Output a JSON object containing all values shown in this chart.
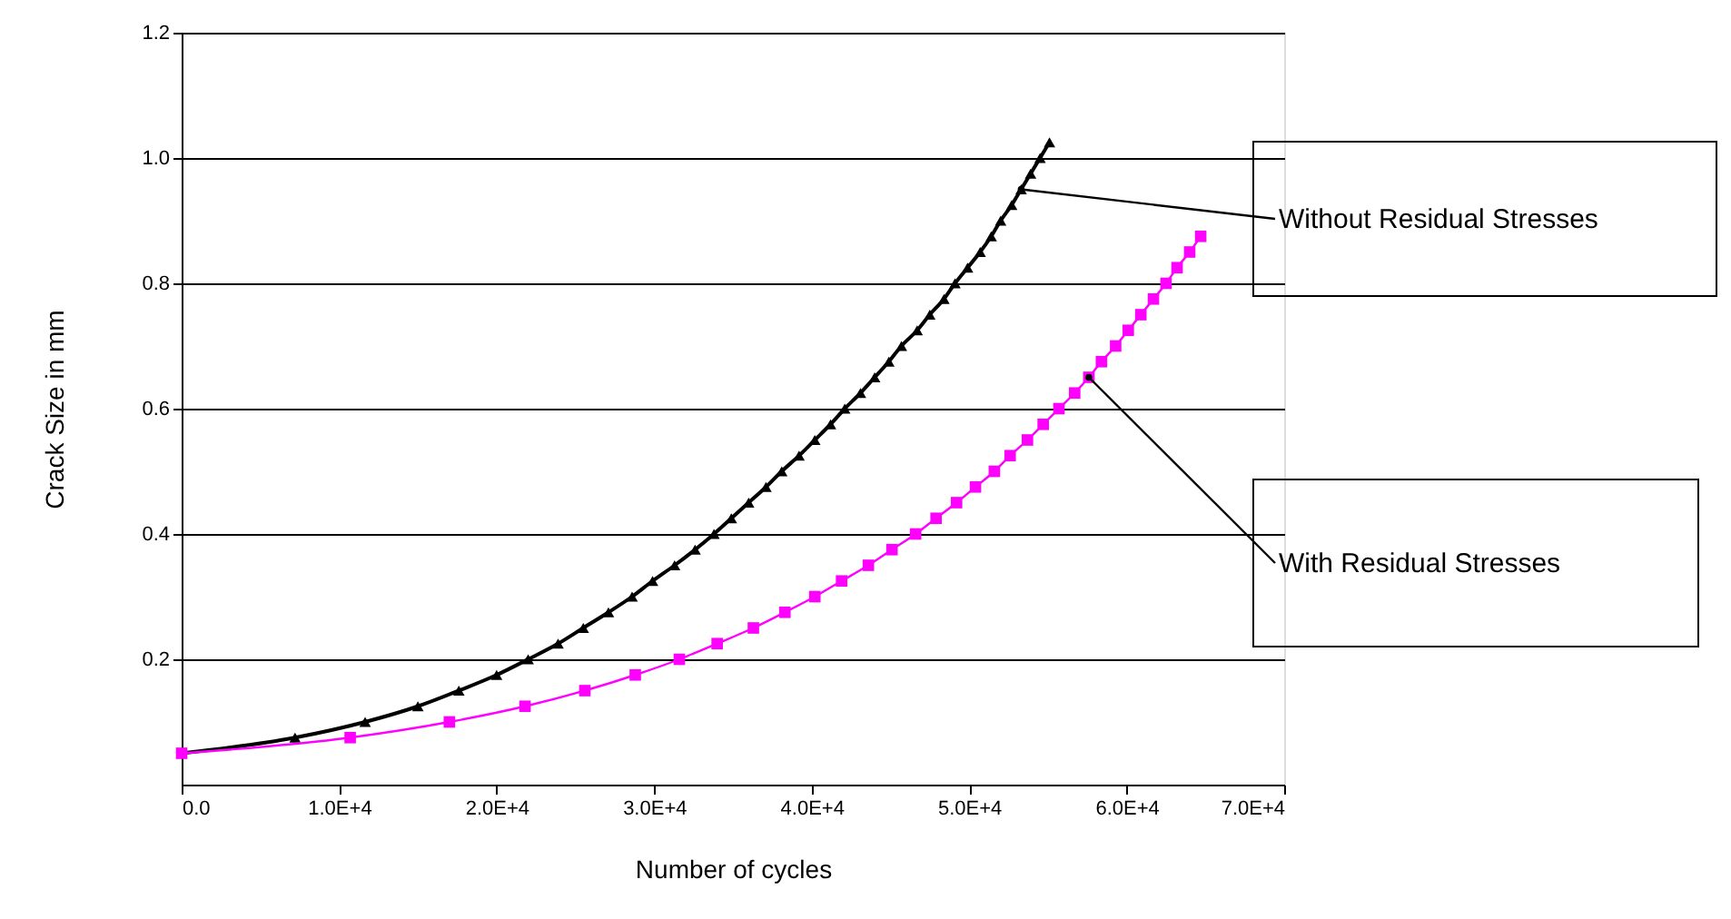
{
  "chart_data": {
    "type": "line",
    "xlabel": "Number of cycles",
    "ylabel": "Crack Size in mm",
    "series": [
      {
        "color": "#000000",
        "marker": "triangle",
        "x": [
          0,
          7200,
          11650,
          15000,
          17600,
          20000,
          22000,
          23900,
          25500,
          27100,
          28600,
          29900,
          31300,
          32600,
          33800,
          34900,
          36000,
          37100,
          38100,
          39200,
          40200,
          41200,
          42100,
          43100,
          44000,
          44900,
          45700,
          46700,
          47500,
          48400,
          49100,
          49900,
          50700,
          51400,
          52000,
          52700,
          53300,
          53900,
          54500,
          55100
        ],
        "values": [
          0.05,
          0.075,
          0.1,
          0.125,
          0.15,
          0.175,
          0.2,
          0.225,
          0.25,
          0.275,
          0.3,
          0.325,
          0.35,
          0.375,
          0.4,
          0.425,
          0.45,
          0.475,
          0.5,
          0.525,
          0.55,
          0.575,
          0.6,
          0.625,
          0.65,
          0.675,
          0.7,
          0.725,
          0.75,
          0.775,
          0.8,
          0.825,
          0.85,
          0.875,
          0.9,
          0.925,
          0.95,
          0.975,
          1.0,
          1.025
        ]
      },
      {
        "color": "#ff00ff",
        "marker": "square",
        "x": [
          0,
          10700,
          17000,
          21800,
          25600,
          28800,
          31600,
          34000,
          36300,
          38300,
          40200,
          41900,
          43600,
          45100,
          46600,
          47900,
          49200,
          50400,
          51600,
          52600,
          53700,
          54700,
          55700,
          56700,
          57600,
          58400,
          59300,
          60100,
          60900,
          61700,
          62500,
          63200,
          64000,
          64700
        ],
        "values": [
          0.05,
          0.075,
          0.1,
          0.125,
          0.15,
          0.175,
          0.2,
          0.225,
          0.25,
          0.275,
          0.3,
          0.325,
          0.35,
          0.375,
          0.4,
          0.425,
          0.45,
          0.475,
          0.5,
          0.525,
          0.55,
          0.575,
          0.6,
          0.625,
          0.65,
          0.675,
          0.7,
          0.725,
          0.75,
          0.775,
          0.8,
          0.825,
          0.85,
          0.875
        ]
      }
    ],
    "xlim": [
      0,
      70000
    ],
    "xticks": [
      {
        "value": 0,
        "label": "0.0"
      },
      {
        "value": 10000,
        "label": "1.0E+4"
      },
      {
        "value": 20000,
        "label": "2.0E+4"
      },
      {
        "value": 30000,
        "label": "3.0E+4"
      },
      {
        "value": 40000,
        "label": "4.0E+4"
      },
      {
        "value": 50000,
        "label": "5.0E+4"
      },
      {
        "value": 60000,
        "label": "6.0E+4"
      },
      {
        "value": 70000,
        "label": "7.0E+4"
      }
    ],
    "ylim": [
      0,
      1.2
    ],
    "yticks": [
      0.2,
      0.4,
      0.6,
      0.8,
      {
        "value": 1.0,
        "label": "1.0"
      },
      1.2
    ],
    "grid": "y",
    "line_style": "solid",
    "annotations": [
      {
        "text": "Without Residual Stresses",
        "x": 53300,
        "y": 0.95
      },
      {
        "text": "With Residual Stresses",
        "x": 57600,
        "y": 0.65
      }
    ]
  }
}
